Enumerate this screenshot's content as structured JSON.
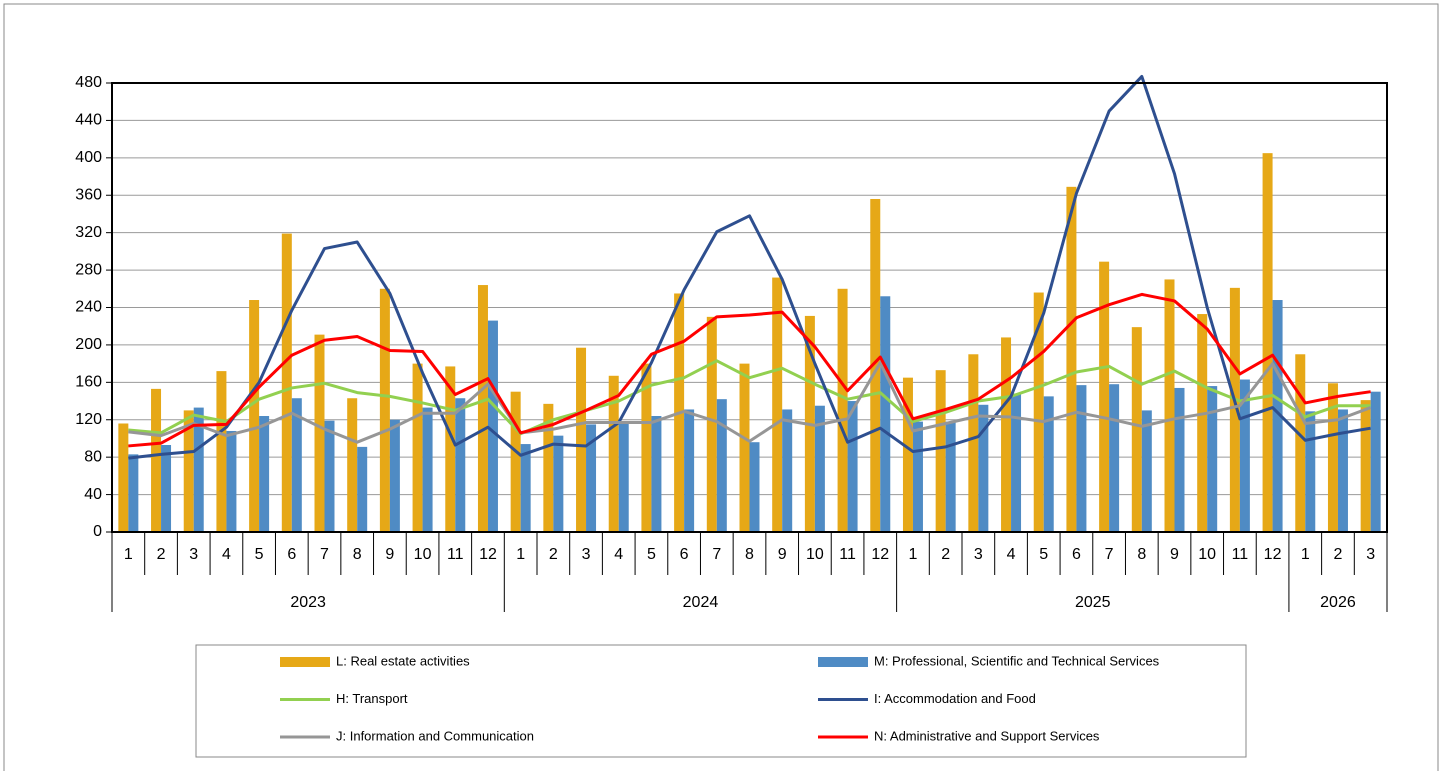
{
  "chart_data": {
    "type": "combo",
    "categories": [
      "1",
      "2",
      "3",
      "4",
      "5",
      "6",
      "7",
      "8",
      "9",
      "10",
      "11",
      "12",
      "1",
      "2",
      "3",
      "4",
      "5",
      "6",
      "7",
      "8",
      "9",
      "10",
      "11",
      "12",
      "1",
      "2",
      "3",
      "4",
      "5",
      "6",
      "7",
      "8",
      "9",
      "10",
      "11",
      "12",
      "1",
      "2",
      "3"
    ],
    "category_groups": [
      "2023",
      "2024",
      "2025",
      "2026"
    ],
    "ylim": [
      0,
      480
    ],
    "yticks": [
      0,
      40,
      80,
      120,
      160,
      200,
      240,
      280,
      320,
      360,
      400,
      440,
      480
    ],
    "grid": true,
    "legend": "bottom",
    "series": [
      {
        "name": "L: Real estate activities",
        "type": "bar",
        "color": "#E6A817",
        "values": [
          116,
          153,
          130,
          172,
          248,
          319,
          211,
          143,
          260,
          180,
          177,
          264,
          150,
          137,
          197,
          167,
          180,
          255,
          230,
          180,
          272,
          231,
          260,
          356,
          165,
          173,
          190,
          208,
          256,
          369,
          289,
          219,
          270,
          233,
          261,
          405,
          190,
          159,
          141
        ]
      },
      {
        "name": "M: Professional, Scientific and Technical Services",
        "type": "bar",
        "color": "#4F8BC4",
        "values": [
          83,
          93,
          133,
          108,
          124,
          143,
          119,
          91,
          120,
          133,
          143,
          226,
          94,
          103,
          115,
          118,
          124,
          131,
          142,
          96,
          131,
          135,
          140,
          252,
          118,
          118,
          136,
          148,
          145,
          157,
          158,
          130,
          154,
          156,
          163,
          248,
          129,
          131,
          150
        ]
      },
      {
        "name": "H: Transport",
        "type": "line",
        "color": "#92D050",
        "values": [
          109,
          106,
          125,
          118,
          142,
          154,
          159,
          149,
          145,
          138,
          130,
          142,
          105,
          120,
          130,
          140,
          157,
          165,
          183,
          165,
          175,
          158,
          142,
          149,
          118,
          128,
          140,
          145,
          157,
          171,
          177,
          158,
          172,
          154,
          140,
          146,
          123,
          135,
          135
        ]
      },
      {
        "name": "I: Accommodation and Food",
        "type": "line",
        "color": "#2E4F8F",
        "values": [
          79,
          83,
          86,
          112,
          160,
          237,
          303,
          310,
          255,
          170,
          93,
          112,
          82,
          94,
          92,
          117,
          181,
          259,
          321,
          338,
          270,
          180,
          96,
          111,
          86,
          91,
          102,
          145,
          234,
          362,
          450,
          487,
          383,
          240,
          121,
          133,
          98,
          105,
          111
        ]
      },
      {
        "name": "J: Information and Communication",
        "type": "line",
        "color": "#969696",
        "values": [
          107,
          103,
          116,
          103,
          112,
          127,
          110,
          96,
          110,
          127,
          127,
          158,
          106,
          110,
          117,
          117,
          117,
          129,
          118,
          97,
          120,
          114,
          121,
          181,
          108,
          116,
          124,
          123,
          118,
          128,
          121,
          113,
          121,
          127,
          135,
          180,
          116,
          120,
          133
        ]
      },
      {
        "name": "N: Administrative and Support Services",
        "type": "line",
        "color": "#FF0000",
        "values": [
          92,
          95,
          114,
          115,
          155,
          189,
          205,
          209,
          194,
          193,
          147,
          164,
          106,
          115,
          130,
          146,
          190,
          204,
          230,
          232,
          235,
          198,
          151,
          187,
          121,
          131,
          142,
          165,
          193,
          229,
          243,
          254,
          247,
          217,
          169,
          189,
          138,
          145,
          150
        ]
      }
    ]
  }
}
